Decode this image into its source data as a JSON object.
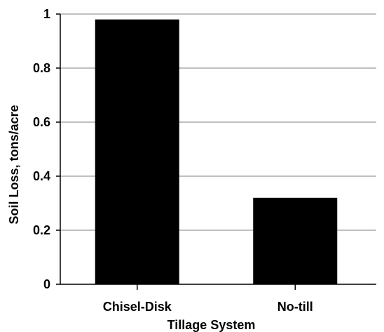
{
  "chart_data": {
    "type": "bar",
    "title": "",
    "xlabel": "Tillage System",
    "ylabel": "Soil Loss, tons/acre",
    "categories": [
      "Chisel-Disk",
      "No-till"
    ],
    "values": [
      0.98,
      0.32
    ],
    "ylim": [
      0,
      1
    ],
    "yticks": [
      0,
      0.2,
      0.4,
      0.6,
      0.8,
      1
    ],
    "ytick_labels": [
      "0",
      "0.2",
      "0.4",
      "0.6",
      "0.8",
      "1"
    ],
    "grid": "horizontal",
    "bar_color": "#000000",
    "grid_color": "#808080"
  }
}
